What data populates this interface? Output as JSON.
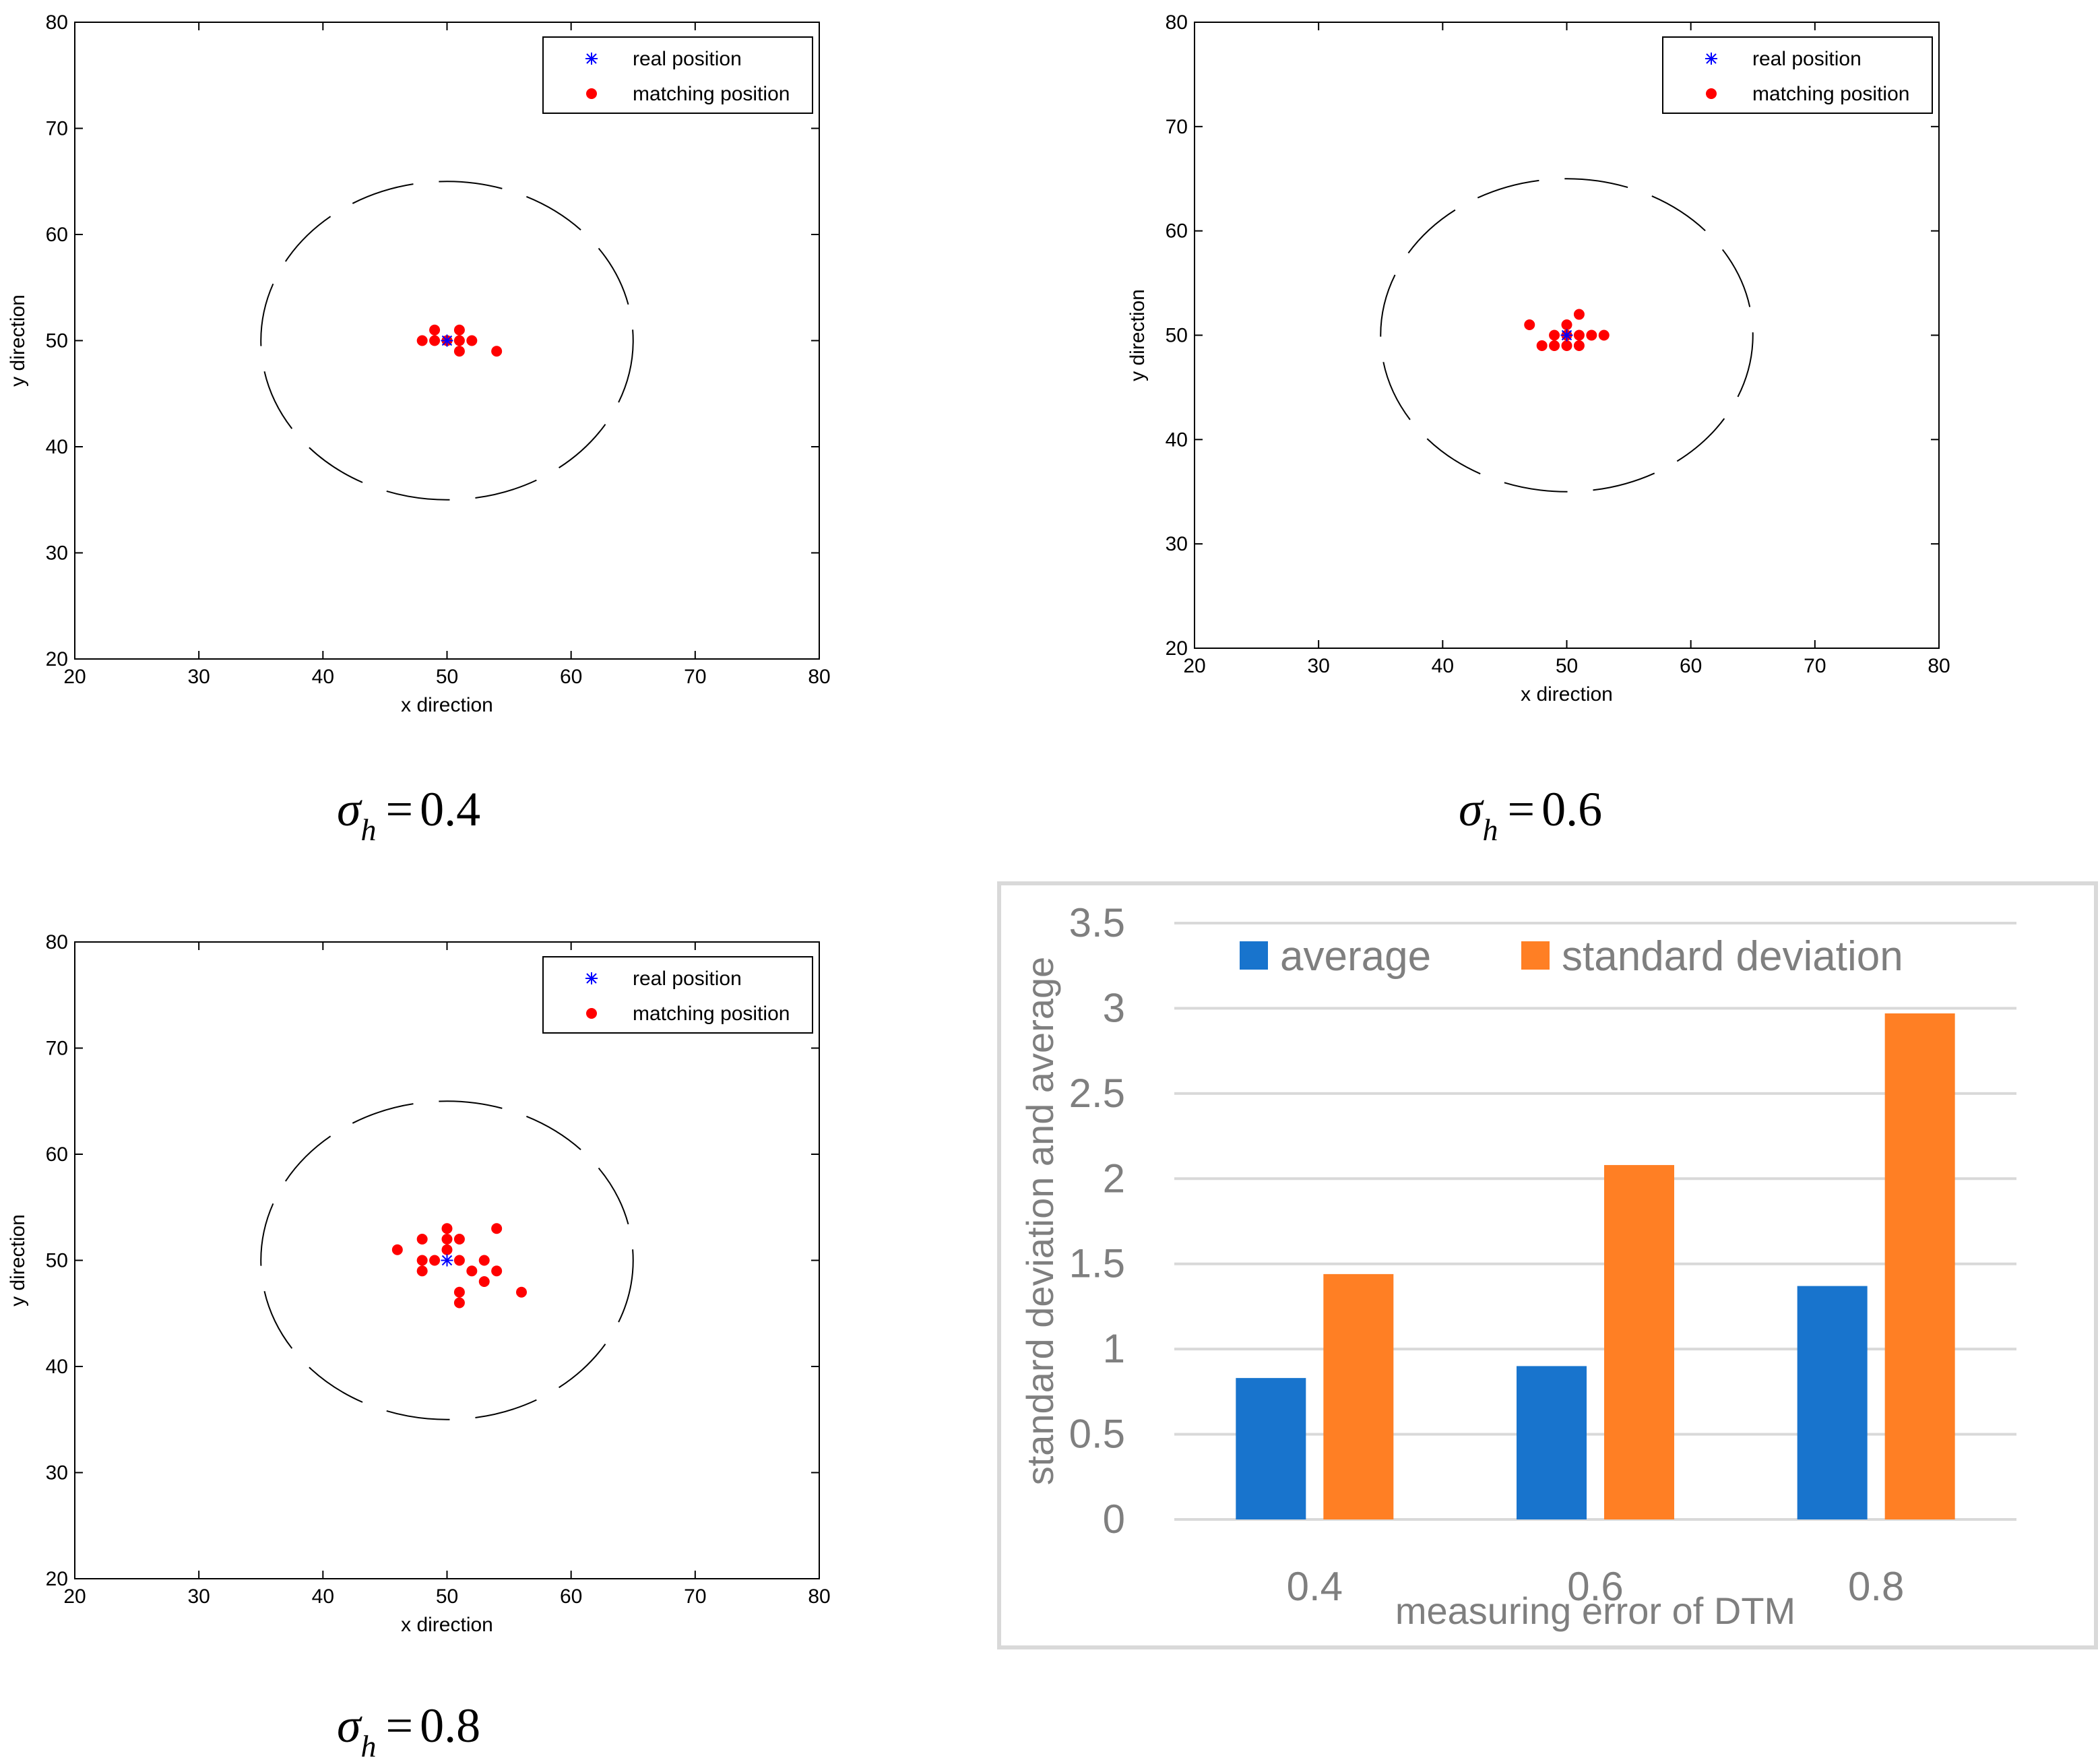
{
  "chart_data": [
    {
      "type": "scatter",
      "caption": {
        "symbol": "σ",
        "subscript": "h",
        "equals": "=",
        "value": "0.4"
      },
      "xlabel": "x direction",
      "ylabel": "y direction",
      "xlim": [
        20,
        80
      ],
      "ylim": [
        20,
        80
      ],
      "xticks": [
        "20",
        "30",
        "40",
        "50",
        "60",
        "70",
        "80"
      ],
      "yticks": [
        "20",
        "30",
        "40",
        "50",
        "60",
        "70",
        "80"
      ],
      "legend": {
        "location": "top-right",
        "real": "real position",
        "matching": "matching position"
      },
      "circle": {
        "center": [
          50,
          50
        ],
        "radius": 15,
        "style": "dashed"
      },
      "series": [
        {
          "name": "real position",
          "marker": "asterisk",
          "color": "#0000ff",
          "points": [
            [
              50,
              50
            ]
          ]
        },
        {
          "name": "matching position",
          "marker": "dot",
          "color": "#ff0000",
          "points": [
            [
              48,
              50
            ],
            [
              49,
              50
            ],
            [
              49,
              51
            ],
            [
              50,
              50
            ],
            [
              51,
              51
            ],
            [
              51,
              50
            ],
            [
              51,
              49
            ],
            [
              52,
              50
            ],
            [
              54,
              49
            ]
          ]
        }
      ]
    },
    {
      "type": "scatter",
      "caption": {
        "symbol": "σ",
        "subscript": "h",
        "equals": "=",
        "value": "0.6"
      },
      "xlabel": "x direction",
      "ylabel": "y direction",
      "xlim": [
        20,
        80
      ],
      "ylim": [
        20,
        80
      ],
      "xticks": [
        "20",
        "30",
        "40",
        "50",
        "60",
        "70",
        "80"
      ],
      "yticks": [
        "20",
        "30",
        "40",
        "50",
        "60",
        "70",
        "80"
      ],
      "legend": {
        "location": "top-right",
        "real": "real position",
        "matching": "matching position"
      },
      "circle": {
        "center": [
          50,
          50
        ],
        "radius": 15,
        "style": "dashed"
      },
      "series": [
        {
          "name": "real position",
          "marker": "asterisk",
          "color": "#0000ff",
          "points": [
            [
              50,
              50
            ]
          ]
        },
        {
          "name": "matching position",
          "marker": "dot",
          "color": "#ff0000",
          "points": [
            [
              47,
              51
            ],
            [
              48,
              49
            ],
            [
              49,
              49
            ],
            [
              49,
              50
            ],
            [
              50,
              49
            ],
            [
              50,
              50
            ],
            [
              50,
              51
            ],
            [
              51,
              49
            ],
            [
              51,
              50
            ],
            [
              51,
              52
            ],
            [
              52,
              50
            ],
            [
              53,
              50
            ]
          ]
        }
      ]
    },
    {
      "type": "scatter",
      "caption": {
        "symbol": "σ",
        "subscript": "h",
        "equals": "=",
        "value": "0.8"
      },
      "xlabel": "x direction",
      "ylabel": "y direction",
      "xlim": [
        20,
        80
      ],
      "ylim": [
        20,
        80
      ],
      "xticks": [
        "20",
        "30",
        "40",
        "50",
        "60",
        "70",
        "80"
      ],
      "yticks": [
        "20",
        "30",
        "40",
        "50",
        "60",
        "70",
        "80"
      ],
      "legend": {
        "location": "top-right",
        "real": "real position",
        "matching": "matching position"
      },
      "circle": {
        "center": [
          50,
          50
        ],
        "radius": 15,
        "style": "dashed"
      },
      "series": [
        {
          "name": "real position",
          "marker": "asterisk",
          "color": "#0000ff",
          "points": [
            [
              50,
              50
            ]
          ]
        },
        {
          "name": "matching position",
          "marker": "dot",
          "color": "#ff0000",
          "points": [
            [
              46,
              51
            ],
            [
              48,
              52
            ],
            [
              48,
              50
            ],
            [
              48,
              49
            ],
            [
              49,
              50
            ],
            [
              50,
              53
            ],
            [
              50,
              52
            ],
            [
              50,
              51
            ],
            [
              51,
              52
            ],
            [
              51,
              50
            ],
            [
              51,
              47
            ],
            [
              51,
              46
            ],
            [
              52,
              49
            ],
            [
              53,
              50
            ],
            [
              53,
              48
            ],
            [
              54,
              53
            ],
            [
              54,
              49
            ],
            [
              56,
              47
            ]
          ]
        }
      ]
    },
    {
      "type": "bar",
      "categories": [
        "0.4",
        "0.6",
        "0.8"
      ],
      "series": [
        {
          "name": "average",
          "color": "#1874cd",
          "values": [
            0.83,
            0.9,
            1.37
          ]
        },
        {
          "name": "standard deviation",
          "color": "#ff7f24",
          "values": [
            1.44,
            2.08,
            2.97
          ]
        }
      ],
      "xlabel": "measuring error of DTM",
      "ylabel": "standard deviation and average",
      "ylim": [
        0,
        3.5
      ],
      "yticks": [
        "0",
        "0.5",
        "1",
        "1.5",
        "2",
        "2.5",
        "3",
        "3.5"
      ],
      "legend": {
        "location": "top"
      },
      "grid": true
    }
  ]
}
